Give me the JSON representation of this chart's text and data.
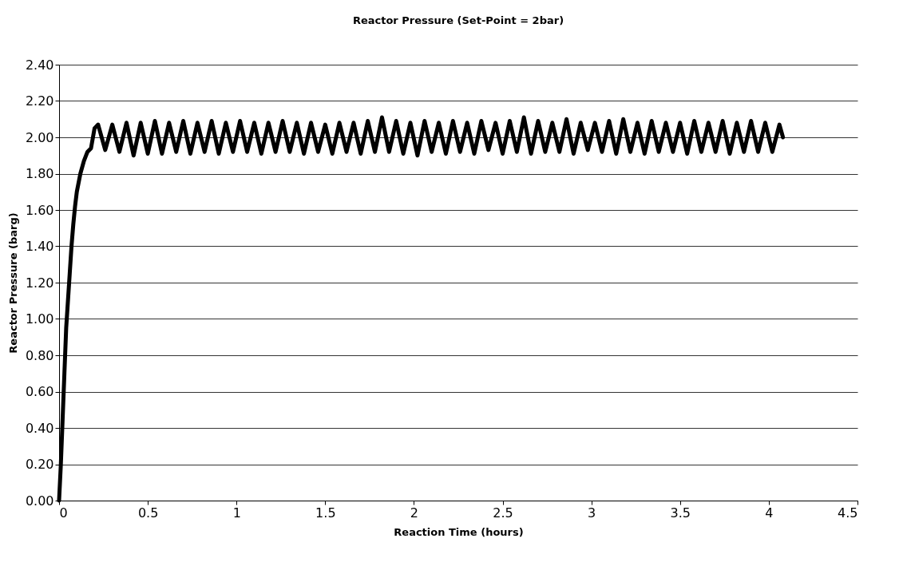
{
  "chart_data": {
    "type": "line",
    "title": "Reactor Pressure (Set-Point = 2bar)",
    "xlabel": "Reaction Time (hours)",
    "ylabel": "Reactor Pressure (barg)",
    "xlim": [
      0,
      4.5
    ],
    "xticks": [
      0,
      0.5,
      1,
      1.5,
      2,
      2.5,
      3,
      3.5,
      4,
      4.5
    ],
    "ylim": [
      0,
      2.4
    ],
    "yticks": [
      {
        "value": 0,
        "label": "0.00"
      },
      {
        "value": 0.2,
        "label": "0.20"
      },
      {
        "value": 0.4,
        "label": "0.40"
      },
      {
        "value": 0.6,
        "label": "0.60"
      },
      {
        "value": 0.8,
        "label": "0.80"
      },
      {
        "value": 1,
        "label": "1.00"
      },
      {
        "value": 1.2,
        "label": "1.20"
      },
      {
        "value": 1.4,
        "label": "1.40"
      },
      {
        "value": 1.6,
        "label": "1.60"
      },
      {
        "value": 1.8,
        "label": "1.80"
      },
      {
        "value": 2,
        "label": "2.00"
      },
      {
        "value": 2.2,
        "label": "2.20"
      },
      {
        "value": 2.4,
        "label": "2.40"
      }
    ],
    "grid": "y",
    "marker": "none",
    "line_style": "solid",
    "series": [
      {
        "color": "#000000",
        "x": [
          0,
          0.01,
          0.02,
          0.03,
          0.04,
          0.05,
          0.06,
          0.07,
          0.08,
          0.09,
          0.1,
          0.12,
          0.14,
          0.16,
          0.18,
          0.2,
          0.22,
          0.26,
          0.3,
          0.34,
          0.38,
          0.42,
          0.46,
          0.5,
          0.54,
          0.58,
          0.62,
          0.66,
          0.7,
          0.74,
          0.78,
          0.82,
          0.86,
          0.9,
          0.94,
          0.98,
          1.02,
          1.06,
          1.1,
          1.14,
          1.18,
          1.22,
          1.26,
          1.3,
          1.34,
          1.38,
          1.42,
          1.46,
          1.5,
          1.54,
          1.58,
          1.62,
          1.66,
          1.7,
          1.74,
          1.78,
          1.82,
          1.86,
          1.9,
          1.94,
          1.98,
          2.02,
          2.06,
          2.1,
          2.14,
          2.18,
          2.22,
          2.26,
          2.3,
          2.34,
          2.38,
          2.42,
          2.46,
          2.5,
          2.54,
          2.58,
          2.62,
          2.66,
          2.7,
          2.74,
          2.78,
          2.82,
          2.86,
          2.9,
          2.94,
          2.98,
          3.02,
          3.06,
          3.1,
          3.14,
          3.18,
          3.22,
          3.26,
          3.3,
          3.34,
          3.38,
          3.42,
          3.46,
          3.5,
          3.54,
          3.58,
          3.62,
          3.66,
          3.7,
          3.74,
          3.78,
          3.82,
          3.86,
          3.9,
          3.94,
          3.98,
          4.02,
          4.06,
          4.08
        ],
        "values": [
          0,
          0.2,
          0.45,
          0.7,
          0.95,
          1.1,
          1.25,
          1.4,
          1.52,
          1.62,
          1.7,
          1.8,
          1.87,
          1.92,
          1.94,
          2.05,
          2.07,
          1.93,
          2.07,
          1.92,
          2.08,
          1.9,
          2.08,
          1.91,
          2.09,
          1.91,
          2.08,
          1.92,
          2.09,
          1.91,
          2.08,
          1.92,
          2.09,
          1.91,
          2.08,
          1.92,
          2.09,
          1.92,
          2.08,
          1.91,
          2.08,
          1.92,
          2.09,
          1.92,
          2.08,
          1.91,
          2.08,
          1.92,
          2.07,
          1.91,
          2.08,
          1.92,
          2.08,
          1.91,
          2.09,
          1.92,
          2.11,
          1.92,
          2.09,
          1.91,
          2.08,
          1.9,
          2.09,
          1.92,
          2.08,
          1.91,
          2.09,
          1.92,
          2.08,
          1.91,
          2.09,
          1.93,
          2.08,
          1.91,
          2.09,
          1.92,
          2.11,
          1.91,
          2.09,
          1.92,
          2.08,
          1.92,
          2.1,
          1.91,
          2.08,
          1.93,
          2.08,
          1.92,
          2.09,
          1.91,
          2.1,
          1.92,
          2.08,
          1.91,
          2.09,
          1.92,
          2.08,
          1.92,
          2.08,
          1.91,
          2.09,
          1.92,
          2.08,
          1.92,
          2.09,
          1.91,
          2.08,
          1.92,
          2.09,
          1.92,
          2.08,
          1.92,
          2.07,
          2.0
        ]
      }
    ]
  }
}
